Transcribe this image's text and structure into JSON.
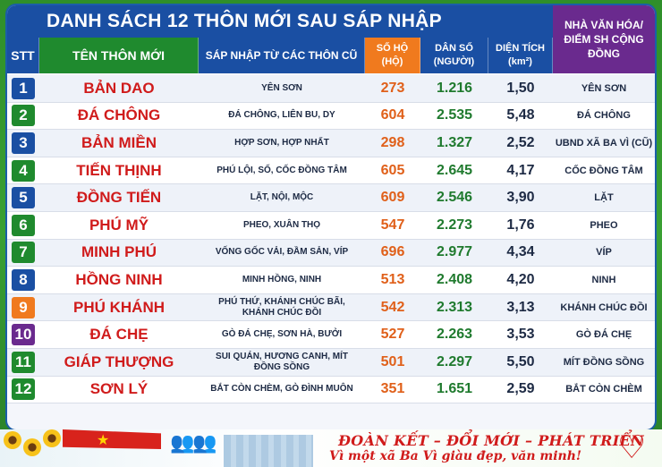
{
  "title": "DANH SÁCH 12 THÔN MỚI SAU SÁP NHẬP",
  "headers": {
    "stt": "STT",
    "ten": "TÊN THÔN MỚI",
    "sap": "SÁP NHẬP TỪ CÁC THÔN CŨ",
    "soho": "SỐ HỘ (HỘ)",
    "danso": "DÂN SỐ (NGƯỜI)",
    "dientich": "DIỆN TÍCH (km²)",
    "nvh": "NHÀ VĂN HÓA/ ĐIỂM SH CỘNG ĐỒNG"
  },
  "rows": [
    {
      "stt": "1",
      "ten": "BẢN DAO",
      "sap": "YÊN SƠN",
      "soho": "273",
      "danso": "1.216",
      "dt": "1,50",
      "nvh": "YÊN SƠN",
      "color": "#1a4fa3"
    },
    {
      "stt": "2",
      "ten": "ĐÁ CHÔNG",
      "sap": "ĐÁ CHÔNG, LIÊN BU, DY",
      "soho": "604",
      "danso": "2.535",
      "dt": "5,48",
      "nvh": "ĐÁ CHÔNG",
      "color": "#1f8a2e"
    },
    {
      "stt": "3",
      "ten": "BẢN MIỀN",
      "sap": "HỢP SƠN, HỢP NHẤT",
      "soho": "298",
      "danso": "1.327",
      "dt": "2,52",
      "nvh": "UBND XÃ BA VÌ (CŨ)",
      "color": "#1a4fa3"
    },
    {
      "stt": "4",
      "ten": "TIẾN THỊNH",
      "sap": "PHÚ LỘI, SỐ, CỐC ĐỒNG TÂM",
      "soho": "605",
      "danso": "2.645",
      "dt": "4,17",
      "nvh": "CỐC ĐỒNG TÂM",
      "color": "#1f8a2e"
    },
    {
      "stt": "5",
      "ten": "ĐỒNG TIẾN",
      "sap": "LẶT, NỘI, MỘC",
      "soho": "609",
      "danso": "2.546",
      "dt": "3,90",
      "nvh": "LẶT",
      "color": "#1a4fa3"
    },
    {
      "stt": "6",
      "ten": "PHÚ MỸ",
      "sap": "PHEO, XUÂN THỌ",
      "soho": "547",
      "danso": "2.273",
      "dt": "1,76",
      "nvh": "PHEO",
      "color": "#1f8a2e"
    },
    {
      "stt": "7",
      "ten": "MINH PHÚ",
      "sap": "VỐNG GỐC VẢI, ĐẦM SẢN, VÍP",
      "soho": "696",
      "danso": "2.977",
      "dt": "4,34",
      "nvh": "VÍP",
      "color": "#1f8a2e"
    },
    {
      "stt": "8",
      "ten": "HỒNG NINH",
      "sap": "MINH HỒNG, NINH",
      "soho": "513",
      "danso": "2.408",
      "dt": "4,20",
      "nvh": "NINH",
      "color": "#1a4fa3"
    },
    {
      "stt": "9",
      "ten": "PHÚ KHÁNH",
      "sap": "PHÚ THỨ, KHÁNH CHÚC BÃI, KHÁNH CHÚC ĐỒI",
      "soho": "542",
      "danso": "2.313",
      "dt": "3,13",
      "nvh": "KHÁNH CHÚC ĐỒI",
      "color": "#f07a1e"
    },
    {
      "stt": "10",
      "ten": "ĐÁ CHẸ",
      "sap": "GÒ ĐÁ CHẸ, SƠN HÀ, BƯỞI",
      "soho": "527",
      "danso": "2.263",
      "dt": "3,53",
      "nvh": "GÒ ĐÁ CHẸ",
      "color": "#6a2a8e"
    },
    {
      "stt": "11",
      "ten": "GIÁP THƯỢNG",
      "sap": "SUI QUÁN, HƯƠNG CANH, MÍT ĐỒNG SỒNG",
      "soho": "501",
      "danso": "2.297",
      "dt": "5,50",
      "nvh": "MÍT ĐỒNG SỒNG",
      "color": "#1f8a2e"
    },
    {
      "stt": "12",
      "ten": "SƠN LÝ",
      "sap": "BẮT CÒN CHÈM, GÒ ĐÌNH MUÔN",
      "soho": "351",
      "danso": "1.651",
      "dt": "2,59",
      "nvh": "BẮT CÒN CHÈM",
      "color": "#1f8a2e"
    }
  ],
  "banner": {
    "slogan1": "ĐOÀN KẾT – ĐỔI MỚI – PHÁT TRIỂN",
    "slogan2": "Vì một xã Ba Vì giàu đẹp, văn minh!"
  }
}
